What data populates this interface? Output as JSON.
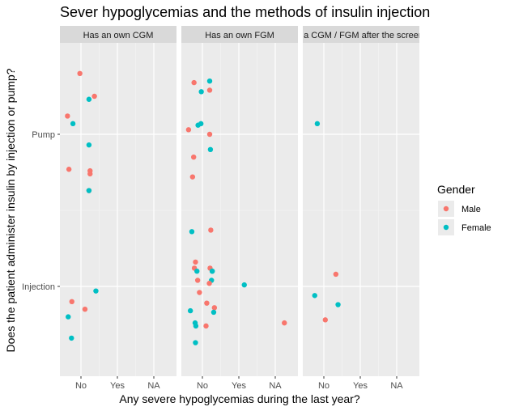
{
  "chart_data": {
    "type": "scatter",
    "title": "Sever hypoglycemias and the methods of insulin injection",
    "xlabel": "Any severe hypoglycemias during the last year?",
    "ylabel": "Does the patient administer insulin by injection or pump?",
    "x_categories": [
      "No",
      "Yes",
      "NA"
    ],
    "y_categories": [
      "Injection",
      "Pump"
    ],
    "jitter": "points are jittered around category positions",
    "legend": {
      "title": "Gender",
      "placement": "right",
      "entries": [
        {
          "name": "Male",
          "color": "#F8766D"
        },
        {
          "name": "Female",
          "color": "#00BFC4"
        }
      ]
    },
    "facets": [
      {
        "label": "Has an own CGM",
        "points": [
          {
            "x": -0.03,
            "y": 2.4,
            "g": "Male"
          },
          {
            "x": 0.37,
            "y": 2.25,
            "g": "Male"
          },
          {
            "x": 0.22,
            "y": 2.23,
            "g": "Female"
          },
          {
            "x": -0.37,
            "y": 2.12,
            "g": "Male"
          },
          {
            "x": -0.22,
            "y": 2.07,
            "g": "Female"
          },
          {
            "x": 0.22,
            "y": 1.93,
            "g": "Female"
          },
          {
            "x": -0.33,
            "y": 1.77,
            "g": "Male"
          },
          {
            "x": 0.25,
            "y": 1.76,
            "g": "Male"
          },
          {
            "x": 0.25,
            "y": 1.74,
            "g": "Male"
          },
          {
            "x": 0.22,
            "y": 1.63,
            "g": "Male"
          },
          {
            "x": 0.22,
            "y": 1.63,
            "g": "Female"
          },
          {
            "x": 0.41,
            "y": 0.97,
            "g": "Female"
          },
          {
            "x": -0.25,
            "y": 0.9,
            "g": "Male"
          },
          {
            "x": 0.11,
            "y": 0.85,
            "g": "Male"
          },
          {
            "x": -0.35,
            "y": 0.8,
            "g": "Female"
          },
          {
            "x": -0.26,
            "y": 0.66,
            "g": "Female"
          }
        ]
      },
      {
        "label": "Has an own FGM",
        "points": [
          {
            "x": 0.2,
            "y": 2.35,
            "g": "Female"
          },
          {
            "x": -0.23,
            "y": 2.34,
            "g": "Male"
          },
          {
            "x": 0.2,
            "y": 2.29,
            "g": "Male"
          },
          {
            "x": -0.03,
            "y": 2.28,
            "g": "Female"
          },
          {
            "x": -0.12,
            "y": 2.06,
            "g": "Female"
          },
          {
            "x": -0.04,
            "y": 2.07,
            "g": "Female"
          },
          {
            "x": -0.38,
            "y": 2.03,
            "g": "Male"
          },
          {
            "x": 0.2,
            "y": 2.0,
            "g": "Male"
          },
          {
            "x": 0.22,
            "y": 1.9,
            "g": "Female"
          },
          {
            "x": -0.24,
            "y": 1.85,
            "g": "Male"
          },
          {
            "x": -0.27,
            "y": 1.72,
            "g": "Male"
          },
          {
            "x": 0.23,
            "y": 1.37,
            "g": "Male"
          },
          {
            "x": -0.29,
            "y": 1.36,
            "g": "Female"
          },
          {
            "x": -0.19,
            "y": 1.16,
            "g": "Male"
          },
          {
            "x": -0.22,
            "y": 1.12,
            "g": "Male"
          },
          {
            "x": 0.21,
            "y": 1.12,
            "g": "Male"
          },
          {
            "x": 0.27,
            "y": 1.1,
            "g": "Female"
          },
          {
            "x": -0.15,
            "y": 1.1,
            "g": "Female"
          },
          {
            "x": 0.27,
            "y": 1.1,
            "g": "Female"
          },
          {
            "x": -0.13,
            "y": 1.04,
            "g": "Male"
          },
          {
            "x": 0.25,
            "y": 1.04,
            "g": "Female"
          },
          {
            "x": 0.19,
            "y": 1.02,
            "g": "Male"
          },
          {
            "x": 1.15,
            "y": 1.01,
            "g": "Female"
          },
          {
            "x": -0.08,
            "y": 0.96,
            "g": "Male"
          },
          {
            "x": 0.12,
            "y": 0.89,
            "g": "Male"
          },
          {
            "x": 0.33,
            "y": 0.86,
            "g": "Male"
          },
          {
            "x": -0.33,
            "y": 0.84,
            "g": "Female"
          },
          {
            "x": 0.31,
            "y": 0.83,
            "g": "Female"
          },
          {
            "x": -0.2,
            "y": 0.76,
            "g": "Female"
          },
          {
            "x": -0.18,
            "y": 0.74,
            "g": "Female"
          },
          {
            "x": 0.1,
            "y": 0.74,
            "g": "Male"
          },
          {
            "x": 2.25,
            "y": 0.76,
            "g": "Male"
          },
          {
            "x": -0.19,
            "y": 0.63,
            "g": "Female"
          }
        ]
      },
      {
        "label": "Got a CGM / FGM after the screening",
        "points": [
          {
            "x": -0.18,
            "y": 2.07,
            "g": "Female"
          },
          {
            "x": 0.33,
            "y": 1.08,
            "g": "Male"
          },
          {
            "x": -0.25,
            "y": 0.94,
            "g": "Female"
          },
          {
            "x": 0.39,
            "y": 0.88,
            "g": "Female"
          },
          {
            "x": 0.04,
            "y": 0.78,
            "g": "Male"
          }
        ]
      }
    ]
  }
}
